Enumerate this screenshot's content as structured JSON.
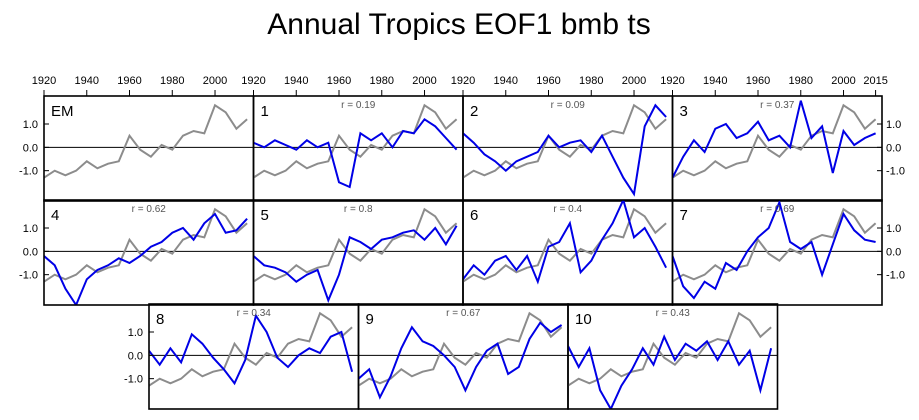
{
  "chart_data": {
    "type": "line",
    "title": "Annual Tropics EOF1 bmb ts",
    "x_ticks": [
      "1920",
      "1940",
      "1960",
      "1980",
      "2000",
      "1920",
      "1940",
      "1960",
      "1980",
      "2000",
      "1920",
      "1940",
      "1960",
      "1980",
      "2000",
      "1920",
      "1940",
      "1960",
      "1980",
      "2000",
      "2015"
    ],
    "y_ticks": [
      "1.0",
      "0.0",
      "-1.0"
    ],
    "xlim": [
      1920,
      2018
    ],
    "ylim": [
      -2.3,
      2.2
    ],
    "series_colors": {
      "observed": "#8c8c8c",
      "member": "#0000e6",
      "zero_line": "#000000"
    },
    "panels": [
      {
        "label": "EM",
        "r": ""
      },
      {
        "label": "1",
        "r": "r = 0.19"
      },
      {
        "label": "2",
        "r": "r = 0.09"
      },
      {
        "label": "3",
        "r": "r = 0.37"
      },
      {
        "label": "4",
        "r": "r = 0.62"
      },
      {
        "label": "5",
        "r": "r = 0.8"
      },
      {
        "label": "6",
        "r": "r = 0.4"
      },
      {
        "label": "7",
        "r": "r = 0.69"
      },
      {
        "label": "8",
        "r": "r = 0.34"
      },
      {
        "label": "9",
        "r": "r = 0.67"
      },
      {
        "label": "10",
        "r": "r = 0.43"
      }
    ],
    "em_series": {
      "name": "EM (observed)",
      "x": [
        1920,
        1925,
        1930,
        1935,
        1940,
        1945,
        1950,
        1955,
        1960,
        1965,
        1970,
        1975,
        1980,
        1985,
        1990,
        1995,
        2000,
        2005,
        2010,
        2015
      ],
      "y": [
        -1.3,
        -1.0,
        -1.2,
        -1.0,
        -0.6,
        -0.9,
        -0.7,
        -0.6,
        0.5,
        -0.1,
        -0.4,
        0.1,
        -0.1,
        0.5,
        0.7,
        0.6,
        1.8,
        1.5,
        0.8,
        1.2
      ]
    },
    "member_series": [
      {
        "name": "1",
        "x": [
          1920,
          1925,
          1930,
          1935,
          1940,
          1945,
          1950,
          1955,
          1960,
          1965,
          1970,
          1975,
          1980,
          1985,
          1990,
          1995,
          2000,
          2005,
          2010,
          2015
        ],
        "y": [
          0.2,
          0.0,
          0.3,
          0.1,
          -0.1,
          0.3,
          0.0,
          0.2,
          -1.5,
          -1.7,
          0.6,
          0.3,
          0.6,
          0.0,
          0.7,
          0.6,
          1.2,
          0.9,
          0.4,
          -0.1
        ]
      },
      {
        "name": "2",
        "x": [
          1920,
          1925,
          1930,
          1935,
          1940,
          1945,
          1950,
          1955,
          1960,
          1965,
          1970,
          1975,
          1980,
          1985,
          1990,
          1995,
          2000,
          2005,
          2010,
          2015
        ],
        "y": [
          0.6,
          0.2,
          -0.3,
          -0.6,
          -1.0,
          -0.6,
          -0.4,
          -0.2,
          0.5,
          0.0,
          0.2,
          0.3,
          -0.2,
          0.5,
          -0.4,
          -1.3,
          -2.0,
          0.9,
          1.8,
          1.3
        ]
      },
      {
        "name": "3",
        "x": [
          1920,
          1925,
          1930,
          1935,
          1940,
          1945,
          1950,
          1955,
          1960,
          1965,
          1970,
          1975,
          1980,
          1985,
          1990,
          1995,
          2000,
          2005,
          2010,
          2015
        ],
        "y": [
          -1.3,
          -0.4,
          0.3,
          -0.2,
          0.8,
          1.0,
          0.4,
          0.6,
          1.1,
          0.3,
          0.5,
          0.0,
          2.0,
          0.4,
          0.9,
          -1.1,
          0.7,
          0.1,
          0.4,
          0.6
        ]
      },
      {
        "name": "4",
        "x": [
          1920,
          1925,
          1930,
          1935,
          1940,
          1945,
          1950,
          1955,
          1960,
          1965,
          1970,
          1975,
          1980,
          1985,
          1990,
          1995,
          2000,
          2005,
          2010,
          2015
        ],
        "y": [
          -0.2,
          -0.6,
          -1.6,
          -2.3,
          -1.2,
          -0.8,
          -0.6,
          -0.3,
          -0.5,
          -0.2,
          0.2,
          0.4,
          0.8,
          1.0,
          0.5,
          1.2,
          1.6,
          0.8,
          0.9,
          1.4
        ]
      },
      {
        "name": "5",
        "x": [
          1920,
          1925,
          1930,
          1935,
          1940,
          1945,
          1950,
          1955,
          1960,
          1965,
          1970,
          1975,
          1980,
          1985,
          1990,
          1995,
          2000,
          2005,
          2010,
          2015
        ],
        "y": [
          -0.2,
          -0.6,
          -0.7,
          -0.9,
          -1.3,
          -1.0,
          -0.8,
          -2.1,
          -1.0,
          0.6,
          0.4,
          0.1,
          0.5,
          0.6,
          0.8,
          0.9,
          0.5,
          1.0,
          0.3,
          1.1
        ]
      },
      {
        "name": "6",
        "x": [
          1920,
          1925,
          1930,
          1935,
          1940,
          1945,
          1950,
          1955,
          1960,
          1965,
          1970,
          1975,
          1980,
          1985,
          1990,
          1995,
          2000,
          2005,
          2010,
          2015
        ],
        "y": [
          -1.2,
          -0.6,
          -1.0,
          -0.4,
          -0.2,
          -0.8,
          -0.2,
          -1.3,
          0.2,
          0.4,
          1.2,
          -0.9,
          -0.4,
          0.5,
          1.2,
          2.2,
          0.6,
          1.0,
          0.2,
          -0.7
        ]
      },
      {
        "name": "7",
        "x": [
          1920,
          1925,
          1930,
          1935,
          1940,
          1945,
          1950,
          1955,
          1960,
          1965,
          1970,
          1975,
          1980,
          1985,
          1990,
          1995,
          2000,
          2005,
          2010,
          2015
        ],
        "y": [
          -0.2,
          -1.5,
          -2.0,
          -1.3,
          -1.6,
          -0.5,
          -0.8,
          0.0,
          0.6,
          1.0,
          2.1,
          0.4,
          0.1,
          0.4,
          -1.0,
          0.3,
          1.6,
          0.9,
          0.5,
          0.4
        ]
      },
      {
        "name": "8",
        "x": [
          1920,
          1925,
          1930,
          1935,
          1940,
          1945,
          1950,
          1955,
          1960,
          1965,
          1970,
          1975,
          1980,
          1985,
          1990,
          1995,
          2000,
          2005,
          2010,
          2015
        ],
        "y": [
          0.2,
          -0.4,
          0.3,
          -0.3,
          0.9,
          0.5,
          -0.1,
          -0.6,
          -1.2,
          -0.2,
          1.7,
          1.0,
          -0.1,
          -0.5,
          0.0,
          0.3,
          0.1,
          0.8,
          1.0,
          -0.7
        ]
      },
      {
        "name": "9",
        "x": [
          1920,
          1925,
          1930,
          1935,
          1940,
          1945,
          1950,
          1955,
          1960,
          1965,
          1970,
          1975,
          1980,
          1985,
          1990,
          1995,
          2000,
          2005,
          2010,
          2015
        ],
        "y": [
          -1.0,
          -0.6,
          -1.8,
          -0.9,
          0.3,
          1.2,
          0.6,
          0.4,
          0.0,
          -0.5,
          -1.5,
          -0.5,
          0.2,
          0.5,
          -0.8,
          -0.5,
          0.7,
          1.4,
          1.0,
          1.3
        ]
      },
      {
        "name": "10",
        "x": [
          1920,
          1925,
          1930,
          1935,
          1940,
          1945,
          1950,
          1955,
          1960,
          1965,
          1970,
          1975,
          1980,
          1985,
          1990,
          1995,
          2000,
          2005,
          2010,
          2015
        ],
        "y": [
          0.4,
          -0.5,
          0.3,
          -1.5,
          -2.3,
          -1.3,
          -0.6,
          0.3,
          -0.4,
          0.8,
          -0.2,
          0.5,
          0.2,
          0.6,
          -0.2,
          0.6,
          -0.4,
          0.2,
          -1.5,
          0.3
        ]
      }
    ]
  }
}
